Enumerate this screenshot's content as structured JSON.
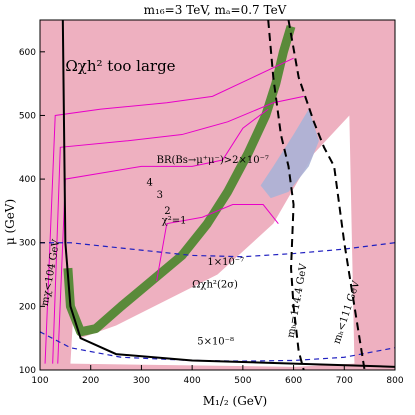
{
  "chart_data": {
    "type": "contour",
    "title": "m₁₆=3 TeV,  mₐ=0.7 TeV",
    "xlabel": "M₁/₂ (GeV)",
    "ylabel": "μ (GeV)",
    "xlim": [
      100,
      800
    ],
    "ylim": [
      100,
      650
    ],
    "xticks": [
      100,
      200,
      300,
      400,
      500,
      600,
      700,
      800
    ],
    "yticks": [
      100,
      200,
      300,
      400,
      500,
      600
    ],
    "grid": false,
    "colors": {
      "excluded": "#eeb0c0",
      "bs_region": "#aab3d6",
      "relic_band": "#5a8a3a",
      "chi2": "#e800c8",
      "bs_contours": "#2020c0",
      "boundary": "#000000"
    },
    "regions": [
      {
        "name": "Ωχh² too large",
        "x": [
          145,
          100,
          100,
          800,
          800,
          710,
          640,
          560,
          450,
          350,
          250,
          180,
          160
        ],
        "y": [
          650,
          650,
          100,
          100,
          650,
          650,
          440,
          330,
          250,
          210,
          170,
          150,
          250
        ]
      },
      {
        "name": "BR(Bs→μ⁺μ⁻)>2×10⁻⁷",
        "x": [
          535,
          560,
          600,
          630,
          650,
          630,
          590,
          555
        ],
        "y": [
          390,
          420,
          470,
          510,
          460,
          420,
          380,
          370
        ]
      }
    ],
    "bands": [
      {
        "name": "Ωχh²(2σ)",
        "x": [
          155,
          160,
          180,
          210,
          260,
          320,
          380,
          430,
          470,
          510,
          545,
          565,
          580,
          595
        ],
        "y": [
          260,
          200,
          160,
          165,
          200,
          240,
          280,
          330,
          380,
          440,
          500,
          550,
          600,
          640
        ]
      }
    ],
    "series": [
      {
        "name": "χ²=1",
        "x": [
          330,
          350,
          420,
          480,
          540,
          570
        ],
        "y": [
          240,
          330,
          340,
          360,
          360,
          330
        ]
      },
      {
        "name": "2",
        "x": [
          135,
          150,
          300,
          400,
          460,
          500,
          550
        ],
        "y": [
          110,
          400,
          420,
          420,
          430,
          480,
          510
        ]
      },
      {
        "name": "3",
        "x": [
          125,
          140,
          270,
          380,
          470,
          560,
          620
        ],
        "y": [
          110,
          450,
          460,
          470,
          490,
          520,
          530
        ]
      },
      {
        "name": "4",
        "x": [
          110,
          130,
          220,
          350,
          440,
          520,
          600
        ],
        "y": [
          110,
          500,
          510,
          520,
          530,
          560,
          590
        ]
      },
      {
        "name": "1×10⁻⁷",
        "x": [
          100,
          160,
          280,
          400,
          500,
          600,
          700,
          800
        ],
        "y": [
          300,
          300,
          290,
          280,
          278,
          283,
          290,
          300
        ]
      },
      {
        "name": "5×10⁻⁸",
        "x": [
          100,
          160,
          260,
          400,
          500,
          600,
          700,
          800
        ],
        "y": [
          160,
          135,
          120,
          115,
          114,
          115,
          120,
          135
        ]
      },
      {
        "name": "mₕ=114.4 GeV",
        "x": [
          550,
          560,
          575,
          590,
          600,
          595,
          600,
          610,
          620
        ],
        "y": [
          650,
          560,
          470,
          420,
          360,
          260,
          200,
          130,
          100
        ]
      },
      {
        "name": "mₕ<111 GeV",
        "x": [
          590,
          610,
          640,
          660,
          680,
          700,
          720,
          740
        ],
        "y": [
          650,
          560,
          490,
          450,
          420,
          300,
          200,
          100
        ]
      },
      {
        "name": "mχ<104 GeV",
        "x": [
          145,
          150,
          160,
          180,
          250,
          400,
          600,
          800
        ],
        "y": [
          650,
          300,
          200,
          150,
          125,
          115,
          110,
          105
        ]
      }
    ],
    "annotations": [
      {
        "text": "Ωχh² too large",
        "x": 150,
        "y": 570
      },
      {
        "text": "BR(Bs→μ⁺μ⁻)>2×10⁻⁷",
        "x": 330,
        "y": 425
      },
      {
        "text": "χ²=1",
        "x": 340,
        "y": 330
      },
      {
        "text": "Ωχh²(2σ)",
        "x": 400,
        "y": 230
      },
      {
        "text": "1×10⁻⁷",
        "x": 430,
        "y": 265
      },
      {
        "text": "5×10⁻⁸",
        "x": 410,
        "y": 140
      },
      {
        "text": "mₕ=114.4 GeV",
        "x": 600,
        "y": 150
      },
      {
        "text": "mₕ<111 GeV",
        "x": 690,
        "y": 140
      },
      {
        "text": "mχ<104 GeV",
        "x": 115,
        "y": 200
      },
      {
        "text": "4",
        "x": 310,
        "y": 390
      },
      {
        "text": "3",
        "x": 330,
        "y": 370
      },
      {
        "text": "2",
        "x": 345,
        "y": 345
      }
    ]
  }
}
